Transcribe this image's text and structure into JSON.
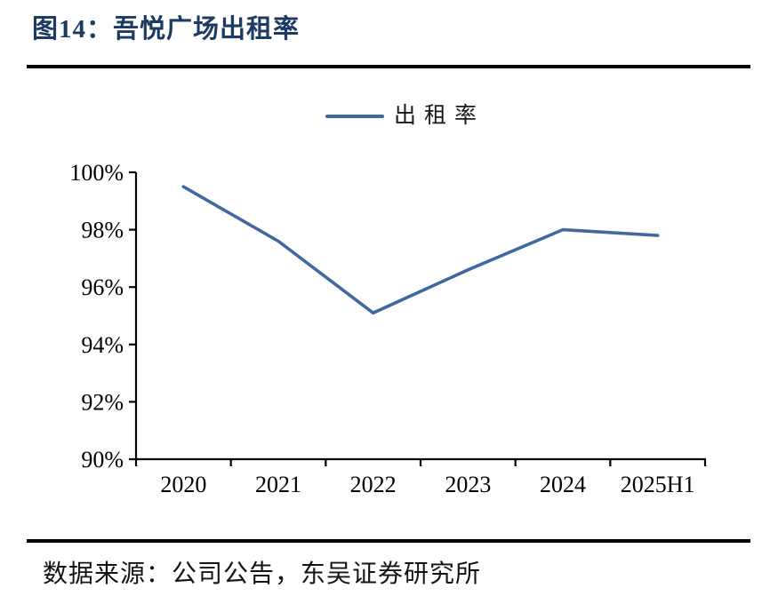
{
  "figure": {
    "title": "图14：吾悦广场出租率",
    "source": "数据来源：公司公告，东吴证券研究所"
  },
  "colors": {
    "line": "#4169a0",
    "title": "#1c3b63",
    "axis": "#000000",
    "tick_label": "#000000"
  },
  "chart_data": {
    "type": "line",
    "title": "图14：吾悦广场出租率",
    "categories": [
      "2020",
      "2021",
      "2022",
      "2023",
      "2024",
      "2025H1"
    ],
    "series": [
      {
        "name": "出租率",
        "values": [
          99.5,
          97.6,
          95.1,
          96.6,
          98.0,
          97.8
        ]
      }
    ],
    "xlabel": "",
    "ylabel": "",
    "ylim": [
      90,
      100
    ],
    "ytick_step": 2,
    "ytick_suffix": "%",
    "grid": false,
    "legend_position": "top-center",
    "source_note": "数据来源：公司公告，东吴证券研究所"
  }
}
